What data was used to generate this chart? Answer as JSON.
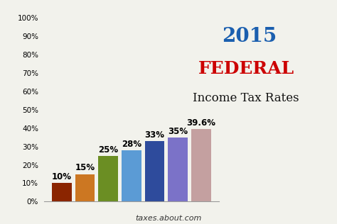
{
  "categories": [
    "10%",
    "15%",
    "25%",
    "28%",
    "33%",
    "35%",
    "39.6%"
  ],
  "values": [
    10,
    15,
    25,
    28,
    33,
    35,
    39.6
  ],
  "bar_colors": [
    "#8B2500",
    "#CC7722",
    "#6B8E23",
    "#5B9BD5",
    "#2E4B9C",
    "#7B72C8",
    "#C4A0A0"
  ],
  "title_year": "2015",
  "title_federal": "FEDERAL",
  "title_subtitle": "Income Tax Rates",
  "footer": "taxes.about.com",
  "ylim": [
    0,
    100
  ],
  "yticks": [
    0,
    10,
    20,
    30,
    40,
    50,
    60,
    70,
    80,
    90,
    100
  ],
  "ytick_labels": [
    "0%",
    "10%",
    "20%",
    "30%",
    "40%",
    "50%",
    "60%",
    "70%",
    "80%",
    "90%",
    "100%"
  ],
  "year_color": "#1B5FAF",
  "federal_color": "#CC0000",
  "subtitle_color": "#111111",
  "background_color": "#F2F2EC",
  "bar_label_fontsize": 8.5
}
